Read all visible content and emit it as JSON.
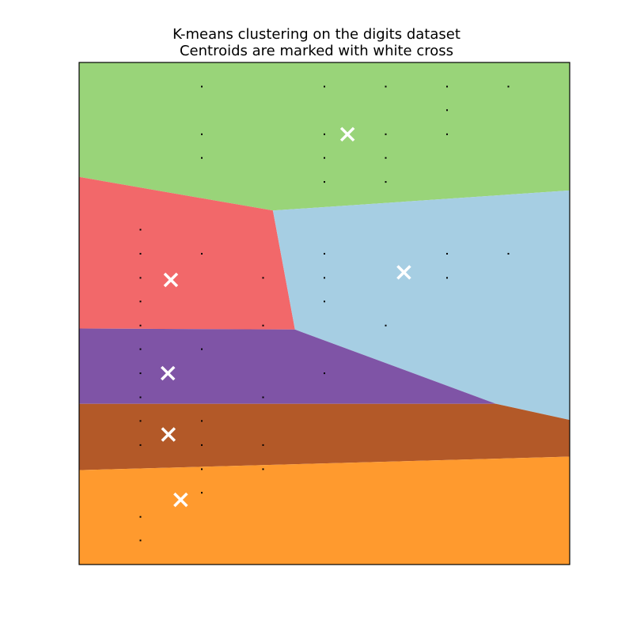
{
  "chart_data": {
    "type": "scatter",
    "title": "K-means clustering on the digits dataset",
    "subtitle": "Centroids are marked with white cross",
    "xlabel": "",
    "ylabel": "",
    "xlim": [
      0,
      10
    ],
    "ylim": [
      0,
      10
    ],
    "axis_ticks": "hidden",
    "grid": false,
    "legend": "none",
    "region_colors": [
      "#99d479",
      "#f2686a",
      "#a6cee3",
      "#7f54a6",
      "#b35928",
      "#ff9a2e"
    ],
    "regions": [
      {
        "color": "#99d479",
        "polygon": [
          [
            0,
            7.72
          ],
          [
            3.95,
            7.05
          ],
          [
            10,
            7.45
          ],
          [
            10,
            10
          ],
          [
            0,
            10
          ]
        ]
      },
      {
        "color": "#f2686a",
        "polygon": [
          [
            0,
            7.72
          ],
          [
            3.95,
            7.05
          ],
          [
            4.4,
            4.68
          ],
          [
            0,
            4.7
          ]
        ]
      },
      {
        "color": "#a6cee3",
        "polygon": [
          [
            3.95,
            7.05
          ],
          [
            10,
            7.45
          ],
          [
            10,
            2.88
          ],
          [
            8.5,
            3.2
          ],
          [
            4.4,
            4.68
          ]
        ]
      },
      {
        "color": "#7f54a6",
        "polygon": [
          [
            0,
            4.7
          ],
          [
            4.4,
            4.68
          ],
          [
            8.5,
            3.2
          ],
          [
            0,
            3.2
          ]
        ]
      },
      {
        "color": "#b35928",
        "polygon": [
          [
            0,
            3.2
          ],
          [
            8.5,
            3.2
          ],
          [
            10,
            2.88
          ],
          [
            10,
            2.15
          ],
          [
            0,
            1.88
          ]
        ]
      },
      {
        "color": "#ff9a2e",
        "polygon": [
          [
            0,
            1.88
          ],
          [
            10,
            2.15
          ],
          [
            10,
            0
          ],
          [
            0,
            0
          ]
        ]
      }
    ],
    "points": [
      [
        2.5,
        9.52
      ],
      [
        5.0,
        9.52
      ],
      [
        6.25,
        9.52
      ],
      [
        7.5,
        9.52
      ],
      [
        8.75,
        9.52
      ],
      [
        7.5,
        9.05
      ],
      [
        2.5,
        8.57
      ],
      [
        5.0,
        8.57
      ],
      [
        6.25,
        8.57
      ],
      [
        7.5,
        8.57
      ],
      [
        2.5,
        8.1
      ],
      [
        5.0,
        8.1
      ],
      [
        6.25,
        8.1
      ],
      [
        5.0,
        7.62
      ],
      [
        6.25,
        7.62
      ],
      [
        1.25,
        6.67
      ],
      [
        1.25,
        6.19
      ],
      [
        2.5,
        6.19
      ],
      [
        5.0,
        6.19
      ],
      [
        7.5,
        6.19
      ],
      [
        8.75,
        6.19
      ],
      [
        1.25,
        5.71
      ],
      [
        3.75,
        5.71
      ],
      [
        5.0,
        5.71
      ],
      [
        7.5,
        5.71
      ],
      [
        1.25,
        5.24
      ],
      [
        5.0,
        5.24
      ],
      [
        1.25,
        4.76
      ],
      [
        3.75,
        4.76
      ],
      [
        6.25,
        4.76
      ],
      [
        1.25,
        4.29
      ],
      [
        2.5,
        4.29
      ],
      [
        1.25,
        3.81
      ],
      [
        5.0,
        3.81
      ],
      [
        1.25,
        3.33
      ],
      [
        3.75,
        3.33
      ],
      [
        1.25,
        2.86
      ],
      [
        2.5,
        2.86
      ],
      [
        1.25,
        2.38
      ],
      [
        2.5,
        2.38
      ],
      [
        3.75,
        2.38
      ],
      [
        2.5,
        1.9
      ],
      [
        3.75,
        1.9
      ],
      [
        2.5,
        1.43
      ],
      [
        1.25,
        0.95
      ],
      [
        1.25,
        0.48
      ]
    ],
    "centroids": [
      [
        5.47,
        8.57
      ],
      [
        1.87,
        5.67
      ],
      [
        6.62,
        5.82
      ],
      [
        1.81,
        3.81
      ],
      [
        1.82,
        2.59
      ],
      [
        2.07,
        1.29
      ]
    ],
    "point_color": "#000000",
    "centroid_color": "#ffffff"
  }
}
